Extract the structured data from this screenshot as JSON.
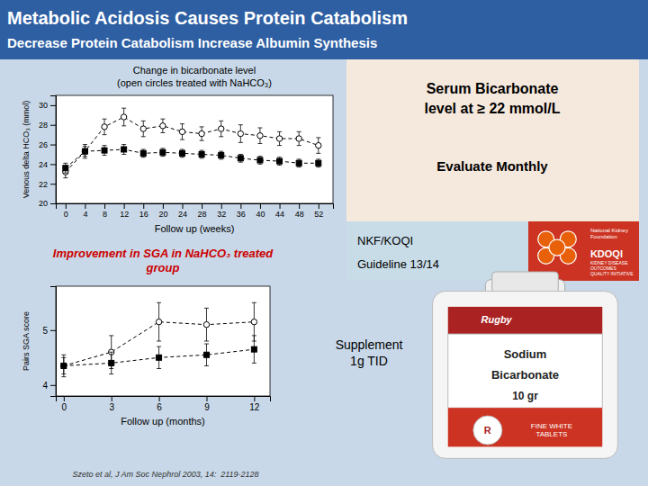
{
  "title": "Metabolic Acidosis Causes Protein Catabolism",
  "subtitle": "Decrease Protein Catabolism Increase Albumin Synthesis",
  "annotations": [
    "Serum Bicarbonate\nlevel at ≥ 22 mmol/L",
    "Evaluate Monthly",
    "NKF/KOQI",
    "Guideline 13/14",
    "National Kidney\nFoundation",
    "KDOQI",
    "KIDNEY DISEASE\nOUTCOMES\nQUALITY INITIATIVE",
    "Supplement\n1g TID",
    "Rugby",
    "Sodium",
    "Bicarbonate",
    "10 gr",
    "R",
    "FINE WHITE\nTABLETS",
    "Szeto et al, J Am Soc Nephrol 2003, 14:  2119-2128"
  ],
  "chart_data": [
    {
      "type": "line",
      "title": "Change in bicarbonate level",
      "subtitle": "(open circles treated with NaHCO₃)",
      "x_label": "Follow up (weeks)",
      "y_label": "Venous delta HCO₃ (mmol)",
      "x": [
        0,
        4,
        8,
        12,
        16,
        20,
        24,
        28,
        32,
        36,
        40,
        44,
        48,
        52
      ],
      "series": [
        {
          "color": "#000000",
          "marker": "open-circle",
          "line_style": "dashed",
          "values": [
            23.2,
            25.3,
            27.8,
            28.8,
            27.6,
            27.9,
            27.3,
            27.1,
            27.6,
            27.1,
            26.9,
            26.6,
            26.6,
            25.9
          ],
          "errors": [
            0.6,
            0.7,
            0.8,
            0.9,
            0.8,
            0.7,
            0.8,
            0.7,
            0.8,
            0.9,
            0.8,
            0.7,
            0.7,
            0.8
          ]
        },
        {
          "color": "#000000",
          "marker": "square",
          "line_style": "dashed",
          "values": [
            23.6,
            25.3,
            25.4,
            25.5,
            25.1,
            25.2,
            25.1,
            25.0,
            24.9,
            24.6,
            24.4,
            24.3,
            24.1,
            24.1
          ],
          "errors": [
            0.5,
            0.5,
            0.5,
            0.5,
            0.4,
            0.4,
            0.4,
            0.4,
            0.4,
            0.4,
            0.4,
            0.4,
            0.4,
            0.4
          ]
        }
      ],
      "xlim": [
        -2,
        55
      ],
      "xticks": [
        0,
        4,
        8,
        12,
        16,
        20,
        24,
        28,
        32,
        36,
        40,
        44,
        48,
        52
      ],
      "ylim": [
        20,
        31
      ],
      "yticks": [
        20,
        22,
        24,
        26,
        28,
        30
      ],
      "grid": false
    },
    {
      "type": "line",
      "title": "Improvement in SGA in NaHCO₃ treated\ngroup",
      "x_label": "Follow up (months)",
      "y_label": "Pairs SGA score",
      "x": [
        0,
        3,
        6,
        9,
        12
      ],
      "series": [
        {
          "color": "#000000",
          "marker": "open-circle",
          "line_style": "dashed",
          "values": [
            4.35,
            4.6,
            5.15,
            5.1,
            5.15
          ],
          "errors": [
            0.2,
            0.3,
            0.35,
            0.3,
            0.35
          ]
        },
        {
          "color": "#000000",
          "marker": "square",
          "line_style": "dashed",
          "values": [
            4.35,
            4.4,
            4.5,
            4.55,
            4.65
          ],
          "errors": [
            0.15,
            0.2,
            0.2,
            0.2,
            0.25
          ]
        }
      ],
      "xlim": [
        -0.5,
        13
      ],
      "xticks": [
        0,
        3,
        6,
        9,
        12
      ],
      "ylim": [
        3.8,
        5.8
      ],
      "yticks": [
        4,
        5
      ],
      "grid": false
    }
  ]
}
